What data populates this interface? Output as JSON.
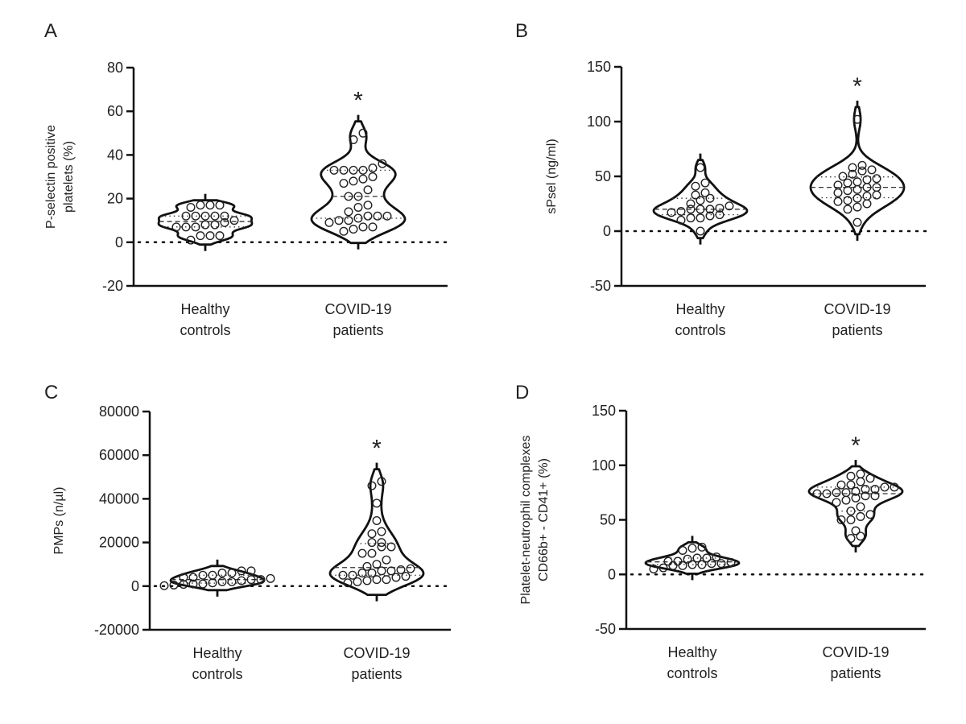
{
  "chart_data": [
    {
      "type": "violin",
      "panel_label": "A",
      "ylabel": [
        "P-selectin positive",
        "platelets (%)"
      ],
      "ylim": [
        -20,
        80
      ],
      "yticks": [
        -20,
        0,
        20,
        40,
        60,
        80
      ],
      "ytick_labels": [
        "-20",
        "0",
        "20",
        "40",
        "60",
        "80"
      ],
      "reference_line": 0,
      "categories": [
        [
          "Healthy",
          "controls"
        ],
        [
          "COVID-19",
          "patients"
        ]
      ],
      "significance": [
        "",
        "*"
      ],
      "series": [
        {
          "values": [
            17,
            17,
            17,
            16,
            12,
            12,
            12,
            12,
            12,
            10,
            9,
            8,
            8,
            7,
            7,
            7,
            3,
            3,
            3,
            1
          ]
        },
        {
          "values": [
            50,
            47,
            36,
            34,
            33,
            33,
            33,
            33,
            30,
            29,
            28,
            27,
            24,
            21,
            21,
            17,
            16,
            14,
            12,
            12,
            12,
            11,
            10,
            10,
            9,
            7,
            7,
            6,
            5
          ]
        }
      ]
    },
    {
      "type": "violin",
      "panel_label": "B",
      "ylabel": [
        "sPsel (ng/ml)"
      ],
      "ylim": [
        -50,
        150
      ],
      "yticks": [
        -50,
        0,
        50,
        100,
        150
      ],
      "ytick_labels": [
        "-50",
        "0",
        "50",
        "100",
        "150"
      ],
      "reference_line": 0,
      "categories": [
        [
          "Healthy",
          "controls"
        ],
        [
          "COVID-19",
          "patients"
        ]
      ],
      "significance": [
        "",
        "*"
      ],
      "series": [
        {
          "values": [
            58,
            44,
            41,
            35,
            33,
            30,
            28,
            25,
            23,
            21,
            20,
            20,
            20,
            18,
            17,
            15,
            14,
            12,
            12,
            10,
            0
          ]
        },
        {
          "values": [
            102,
            60,
            58,
            56,
            55,
            52,
            50,
            48,
            47,
            45,
            44,
            42,
            40,
            40,
            38,
            37,
            35,
            33,
            32,
            30,
            28,
            27,
            25,
            22,
            20,
            8
          ]
        }
      ]
    },
    {
      "type": "violin",
      "panel_label": "C",
      "ylabel": [
        "PMPs (n/µl)"
      ],
      "ylim": [
        -20000,
        80000
      ],
      "yticks": [
        -20000,
        0,
        20000,
        40000,
        60000,
        80000
      ],
      "ytick_labels": [
        "-20000",
        "0",
        "20000",
        "40000",
        "60000",
        "80000"
      ],
      "reference_line": 0,
      "categories": [
        [
          "Healthy",
          "controls"
        ],
        [
          "COVID-19",
          "patients"
        ]
      ],
      "significance": [
        "",
        "*"
      ],
      "series": [
        {
          "values": [
            7000,
            7000,
            6000,
            6000,
            5000,
            5000,
            4000,
            4000,
            3500,
            3000,
            3000,
            2500,
            2000,
            2000,
            1500,
            1000,
            1000,
            800,
            500,
            200
          ]
        },
        {
          "values": [
            48000,
            46000,
            38000,
            30000,
            25000,
            24000,
            20000,
            20000,
            18000,
            18000,
            15000,
            15000,
            12000,
            10000,
            9000,
            8000,
            7500,
            7000,
            7000,
            6000,
            6000,
            5000,
            5000,
            4500,
            4000,
            3000,
            3000,
            2500,
            2000,
            1500
          ]
        }
      ]
    },
    {
      "type": "violin",
      "panel_label": "D",
      "ylabel": [
        "Platelet-neutrophil complexes",
        "CD66b+ - CD41+ (%)"
      ],
      "ylim": [
        -50,
        150
      ],
      "yticks": [
        -50,
        0,
        50,
        100,
        150
      ],
      "ytick_labels": [
        "-50",
        "0",
        "50",
        "100",
        "150"
      ],
      "reference_line": 0,
      "categories": [
        [
          "Healthy",
          "controls"
        ],
        [
          "COVID-19",
          "patients"
        ]
      ],
      "significance": [
        "",
        "*"
      ],
      "series": [
        {
          "values": [
            25,
            24,
            22,
            16,
            15,
            15,
            14,
            12,
            12,
            11,
            10,
            10,
            9,
            9,
            8,
            8,
            6,
            5
          ]
        },
        {
          "values": [
            92,
            90,
            88,
            85,
            82,
            82,
            80,
            80,
            78,
            78,
            76,
            75,
            75,
            74,
            74,
            72,
            72,
            70,
            68,
            66,
            62,
            58,
            55,
            53,
            50,
            50,
            40,
            35,
            33
          ]
        }
      ]
    }
  ]
}
